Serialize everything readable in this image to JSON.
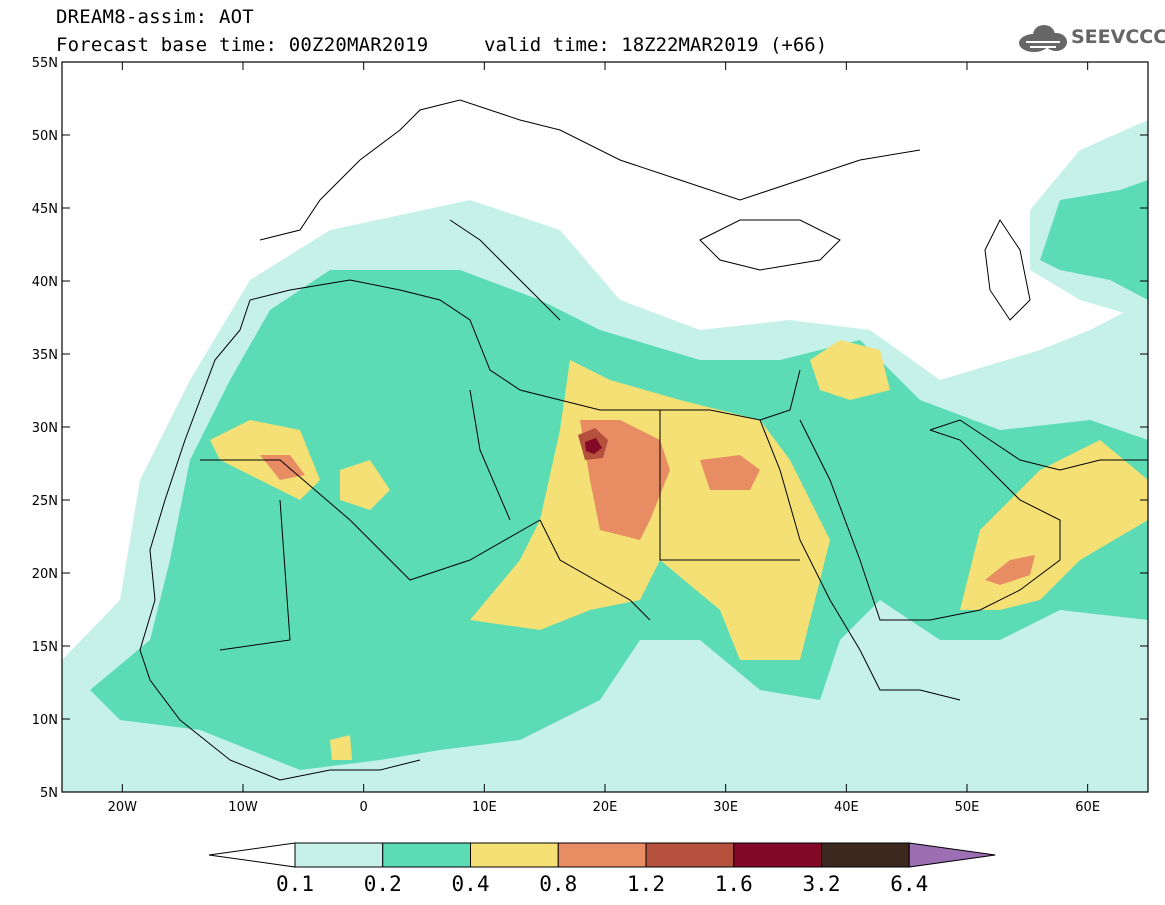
{
  "header": {
    "title_line1": "DREAM8-assim: AOT",
    "forecast_base": "Forecast base time: 00Z20MAR2019",
    "valid_time": "valid time: 18Z22MAR2019 (+66)",
    "logo_text": "SEEVCCC",
    "logo_icon": "cloud-icon"
  },
  "map": {
    "lon_range": [
      -25,
      65
    ],
    "lat_range": [
      5,
      55
    ],
    "lat_ticks": [
      "55N",
      "50N",
      "45N",
      "40N",
      "35N",
      "30N",
      "25N",
      "20N",
      "15N",
      "10N",
      "5N"
    ],
    "lon_ticks": [
      "20W",
      "10W",
      "0",
      "10E",
      "20E",
      "30E",
      "40E",
      "50E",
      "60E"
    ],
    "colors": {
      "c01": "#c6f1e9",
      "c02": "#5cdcb4",
      "c04": "#f4e074",
      "c08": "#e88c64",
      "c12": "#b4503c",
      "c16": "#820a28",
      "c32": "#3c281e",
      "c64": "#9c6eb4",
      "coast": "#000000"
    }
  },
  "colorbar": {
    "labels": [
      "0.1",
      "0.2",
      "0.4",
      "0.8",
      "1.2",
      "1.6",
      "3.2",
      "6.4"
    ],
    "colors": [
      "#c6f1e9",
      "#5cdcb4",
      "#f4e074",
      "#e88c64",
      "#b4503c",
      "#820a28",
      "#3c281e"
    ],
    "low_end_color": "#ffffff",
    "high_end_color": "#9c6eb4"
  }
}
